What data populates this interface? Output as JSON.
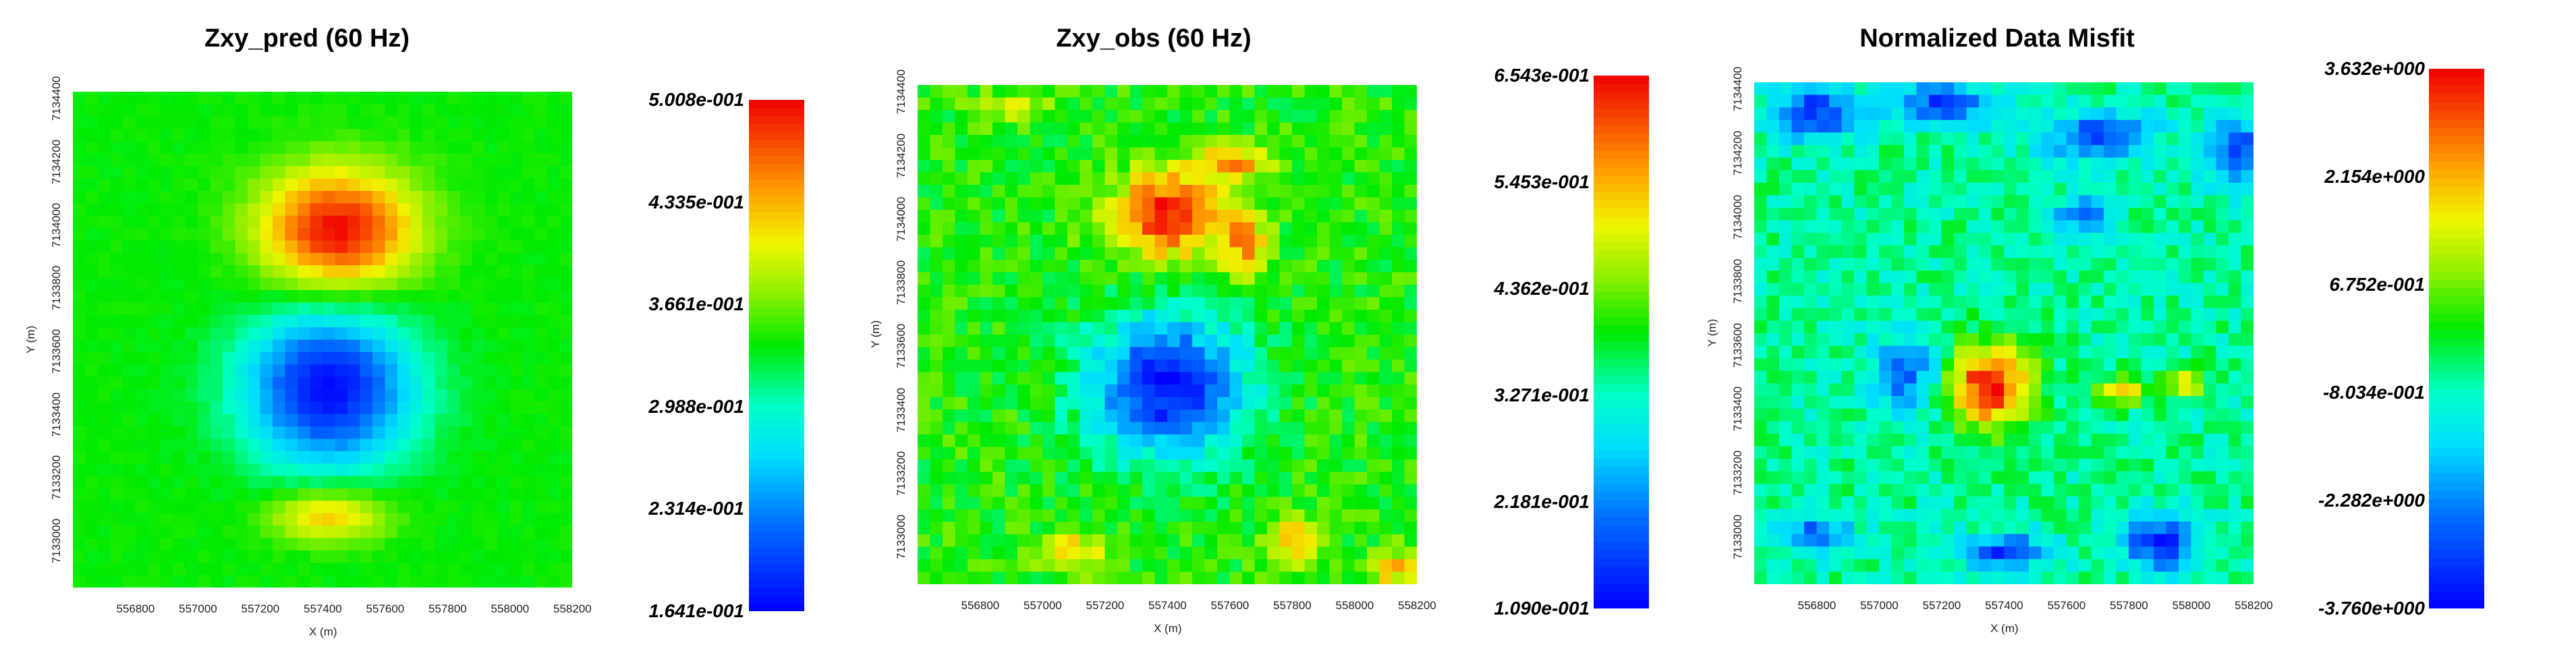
{
  "chart_data": [
    {
      "type": "heatmap",
      "title": "Zxy_pred (60 Hz)",
      "xlabel": "X (m)",
      "ylabel": "Y (m)",
      "xticks": [
        "556800",
        "557000",
        "557200",
        "557400",
        "557600",
        "557800",
        "558000",
        "558200"
      ],
      "yticks": [
        "7133000",
        "7133200",
        "7133400",
        "7133600",
        "7133800",
        "7134000",
        "7134200",
        "7134400"
      ],
      "xlim": [
        556600,
        558200
      ],
      "ylim": [
        7132850,
        7134420
      ],
      "colorbar_labels": [
        "5.008e-001",
        "4.335e-001",
        "3.661e-001",
        "2.988e-001",
        "2.314e-001",
        "1.641e-001"
      ],
      "vmin": 0.1641,
      "vmax": 0.5008,
      "background_value": 0.34,
      "anomalies": [
        {
          "x": 557450,
          "y": 7133980,
          "value": 0.5,
          "rx": 260,
          "ry": 200
        },
        {
          "x": 557420,
          "y": 7133480,
          "value": 0.17,
          "rx": 280,
          "ry": 260
        },
        {
          "x": 557420,
          "y": 7133080,
          "value": 0.43,
          "rx": 200,
          "ry": 90
        }
      ]
    },
    {
      "type": "heatmap",
      "title": "Zxy_obs (60 Hz)",
      "xlabel": "X (m)",
      "ylabel": "Y (m)",
      "xticks": [
        "556800",
        "557000",
        "557200",
        "557400",
        "557600",
        "557800",
        "558000",
        "558200"
      ],
      "yticks": [
        "7133000",
        "7133200",
        "7133400",
        "7133600",
        "7133800",
        "7134000",
        "7134200",
        "7134400"
      ],
      "xlim": [
        556600,
        558200
      ],
      "ylim": [
        7132850,
        7134420
      ],
      "colorbar_labels": [
        "6.543e-001",
        "5.453e-001",
        "4.362e-001",
        "3.271e-001",
        "2.181e-001",
        "1.090e-001"
      ],
      "vmin": 0.109,
      "vmax": 0.6543,
      "background_value": 0.4,
      "anomalies": [
        {
          "x": 557400,
          "y": 7134010,
          "value": 0.65,
          "rx": 180,
          "ry": 140
        },
        {
          "x": 557620,
          "y": 7134180,
          "value": 0.55,
          "rx": 140,
          "ry": 60
        },
        {
          "x": 557650,
          "y": 7133920,
          "value": 0.55,
          "rx": 80,
          "ry": 110
        },
        {
          "x": 557400,
          "y": 7133470,
          "value": 0.12,
          "rx": 260,
          "ry": 230
        },
        {
          "x": 557100,
          "y": 7132950,
          "value": 0.54,
          "rx": 110,
          "ry": 60
        },
        {
          "x": 557800,
          "y": 7132990,
          "value": 0.55,
          "rx": 80,
          "ry": 80
        },
        {
          "x": 558120,
          "y": 7132900,
          "value": 0.55,
          "rx": 80,
          "ry": 60
        },
        {
          "x": 556900,
          "y": 7134350,
          "value": 0.5,
          "rx": 120,
          "ry": 50
        }
      ]
    },
    {
      "type": "heatmap",
      "title": "Normalized Data Misfit",
      "xlabel": "X (m)",
      "ylabel": "Y (m)",
      "xticks": [
        "556800",
        "557000",
        "557200",
        "557400",
        "557600",
        "557800",
        "558000",
        "558200"
      ],
      "yticks": [
        "7133000",
        "7133200",
        "7133400",
        "7133600",
        "7133800",
        "7134000",
        "7134200",
        "7134400"
      ],
      "xlim": [
        556600,
        558200
      ],
      "ylim": [
        7132850,
        7134420
      ],
      "colorbar_labels": [
        "3.632e+000",
        "2.154e+000",
        "6.752e-001",
        "-8.034e-001",
        "-2.282e+000",
        "-3.760e+000"
      ],
      "vmin": -3.76,
      "vmax": 3.632,
      "background_value": -0.6,
      "anomalies": [
        {
          "x": 557350,
          "y": 7133470,
          "value": 3.5,
          "rx": 150,
          "ry": 140
        },
        {
          "x": 557780,
          "y": 7133450,
          "value": 1.8,
          "rx": 80,
          "ry": 50
        },
        {
          "x": 557980,
          "y": 7133480,
          "value": 2.0,
          "rx": 70,
          "ry": 40
        },
        {
          "x": 556800,
          "y": 7134330,
          "value": -3.2,
          "rx": 140,
          "ry": 90
        },
        {
          "x": 557200,
          "y": 7134350,
          "value": -3.0,
          "rx": 160,
          "ry": 70
        },
        {
          "x": 557700,
          "y": 7134250,
          "value": -3.0,
          "rx": 180,
          "ry": 80
        },
        {
          "x": 558150,
          "y": 7134200,
          "value": -3.2,
          "rx": 100,
          "ry": 120
        },
        {
          "x": 557100,
          "y": 7133500,
          "value": -2.6,
          "rx": 120,
          "ry": 140
        },
        {
          "x": 557900,
          "y": 7132980,
          "value": -3.4,
          "rx": 120,
          "ry": 90
        },
        {
          "x": 557400,
          "y": 7132950,
          "value": -3.0,
          "rx": 150,
          "ry": 60
        },
        {
          "x": 556800,
          "y": 7133000,
          "value": -2.8,
          "rx": 120,
          "ry": 60
        },
        {
          "x": 557650,
          "y": 7134000,
          "value": -2.4,
          "rx": 100,
          "ry": 70
        }
      ]
    }
  ]
}
